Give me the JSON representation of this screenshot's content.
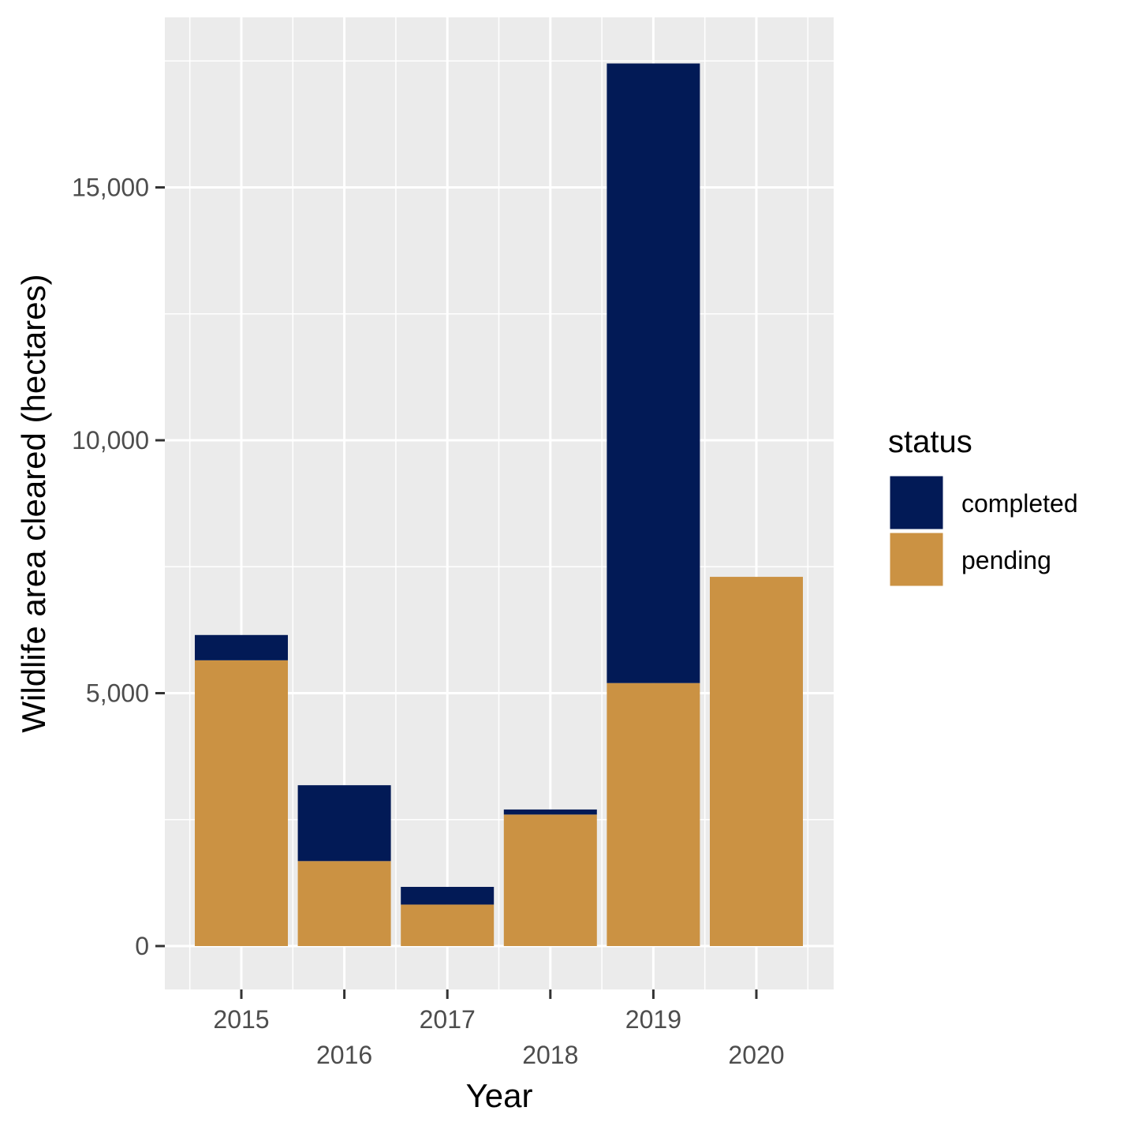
{
  "chart_data": {
    "type": "bar",
    "stacked": true,
    "categories": [
      "2015",
      "2016",
      "2017",
      "2018",
      "2019",
      "2020"
    ],
    "series": [
      {
        "name": "completed",
        "values": [
          500,
          1500,
          350,
          100,
          12250,
          0
        ]
      },
      {
        "name": "pending",
        "values": [
          5650,
          1680,
          820,
          2600,
          5200,
          7300
        ]
      }
    ],
    "colors": {
      "completed": "#021A56",
      "pending": "#CB9243",
      "panel": "#EBEBEB",
      "grid": "#FFFFFF"
    },
    "title": "",
    "xlabel": "Year",
    "ylabel": "Wildlife area cleared (hectares)",
    "ylim": [
      -850,
      18300
    ],
    "yticks": [
      0,
      5000,
      10000,
      15000
    ],
    "ytick_labels": [
      "0",
      "5,000",
      "10,000",
      "15,000"
    ],
    "x_tick_labels_staggered": true,
    "grid": true,
    "legend": {
      "title": "status",
      "position": "right",
      "entries": [
        "completed",
        "pending"
      ]
    }
  }
}
